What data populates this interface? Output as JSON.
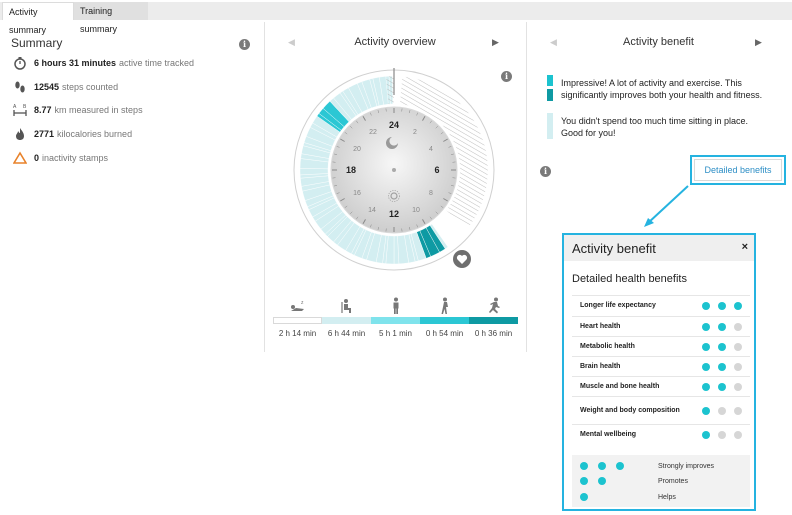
{
  "tabs": [
    {
      "label": "Activity summary",
      "active": true
    },
    {
      "label": "Training summary",
      "active": false
    }
  ],
  "summary": {
    "title": "Summary",
    "rows": [
      {
        "icon": "stopwatch-icon",
        "value": "6 hours 31 minutes",
        "label": "active time tracked"
      },
      {
        "icon": "footsteps-icon",
        "value": "12545",
        "label": "steps counted"
      },
      {
        "icon": "distance-icon",
        "value": "8.77",
        "label": "km measured in steps"
      },
      {
        "icon": "flame-icon",
        "value": "2771",
        "label": "kilocalories burned"
      },
      {
        "icon": "warning-triangle-icon",
        "value": "0",
        "label": "inactivity stamps"
      }
    ]
  },
  "overview": {
    "title": "Activity overview",
    "clock_hours": [
      "24",
      "2",
      "4",
      "6",
      "8",
      "10",
      "12",
      "14",
      "16",
      "18",
      "20",
      "22"
    ],
    "legend": [
      {
        "icon": "sleep-icon",
        "value": "2 h 14 min",
        "color": "#ffffff"
      },
      {
        "icon": "sitting-icon",
        "value": "6 h 44 min",
        "color": "#d3eef1"
      },
      {
        "icon": "standing-icon",
        "value": "5 h 1 min",
        "color": "#7fe3ec"
      },
      {
        "icon": "walking-icon",
        "value": "0 h 54 min",
        "color": "#2bc7d4"
      },
      {
        "icon": "running-icon",
        "value": "0 h 36 min",
        "color": "#0e9aa3"
      }
    ]
  },
  "benefit": {
    "title": "Activity benefit",
    "messages": [
      {
        "text": "Impressive! A lot of activity and exercise. This significantly improves both your health and fitness."
      },
      {
        "text": "You didn't spend too much time sitting in place. Good for you!"
      }
    ],
    "detail_button": "Detailed benefits"
  },
  "popup": {
    "title": "Activity benefit",
    "close": "×",
    "subtitle": "Detailed health benefits",
    "rows": [
      {
        "name": "Longer life expectancy",
        "level": 3
      },
      {
        "name": "Heart health",
        "level": 2
      },
      {
        "name": "Metabolic health",
        "level": 2
      },
      {
        "name": "Brain health",
        "level": 2
      },
      {
        "name": "Muscle and bone health",
        "level": 2
      },
      {
        "name": "Weight and body composition",
        "level": 1
      },
      {
        "name": "Mental wellbeing",
        "level": 1
      }
    ],
    "legend": [
      {
        "dots": 3,
        "label": "Strongly improves"
      },
      {
        "dots": 2,
        "label": "Promotes"
      },
      {
        "dots": 1,
        "label": "Helps"
      }
    ]
  },
  "colors": {
    "accent": "#25b3e0",
    "dot_on": "#1cc3cf",
    "dot_off": "#d6d6d6",
    "msg_bar_1": "#1cc3cf",
    "msg_bar_2": "#0e9aa3",
    "msg_bar_3": "#d3eef1"
  }
}
